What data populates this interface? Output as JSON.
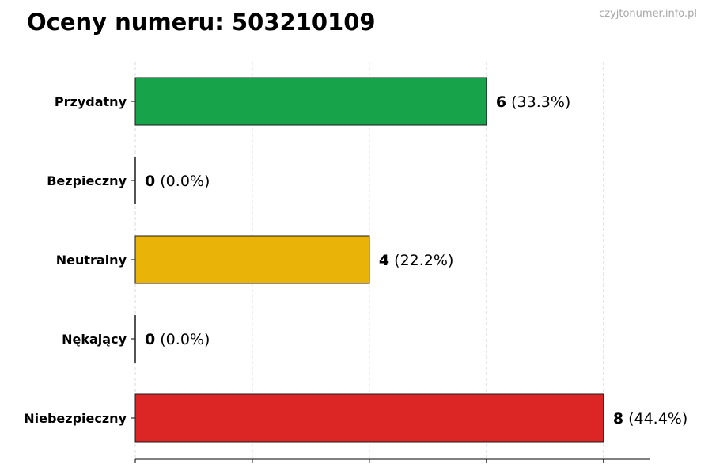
{
  "title": "Oceny numeru: 503210109",
  "watermark": "czyjtonumer.info.pl",
  "chart_data": {
    "type": "bar",
    "orientation": "horizontal",
    "title": "Oceny numeru: 503210109",
    "xlabel": "",
    "ylabel": "",
    "xlim": [
      0,
      8.8
    ],
    "x_gridlines": [
      0,
      2,
      4,
      6,
      8
    ],
    "grid": "x-dashed",
    "categories": [
      "Przydatny",
      "Bezpieczny",
      "Neutralny",
      "Nękający",
      "Niebezpieczny"
    ],
    "values": [
      6,
      0,
      4,
      0,
      8
    ],
    "labels": [
      "(33.3%)",
      "(0.0%)",
      "(22.2%)",
      "(0.0%)",
      "(44.4%)"
    ],
    "colors": [
      "#16a34a",
      "#16a34a",
      "#eab308",
      "#dc2626",
      "#dc2626"
    ]
  }
}
